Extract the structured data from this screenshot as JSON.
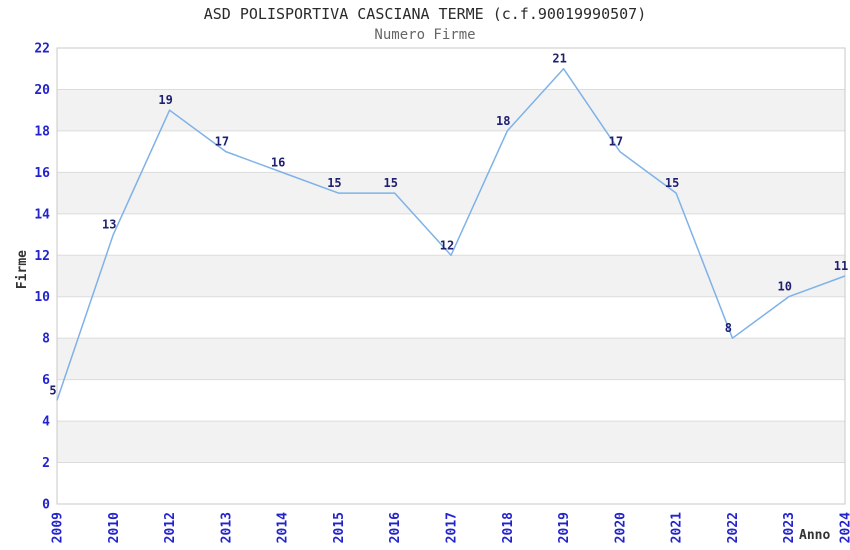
{
  "chart_data": {
    "type": "line",
    "title": "ASD POLISPORTIVA CASCIANA TERME (c.f.90019990507)",
    "subtitle": "Numero Firme",
    "xlabel": "Anno",
    "ylabel": "Firme",
    "categories": [
      "2009",
      "2010",
      "2012",
      "2013",
      "2014",
      "2015",
      "2016",
      "2017",
      "2018",
      "2019",
      "2020",
      "2021",
      "2022",
      "2023",
      "2024"
    ],
    "values": [
      5,
      13,
      19,
      17,
      16,
      15,
      15,
      12,
      18,
      21,
      17,
      15,
      8,
      10,
      11
    ],
    "ylim": [
      0,
      22
    ],
    "ytick_step": 2,
    "grid": "horizontal-bands-alternating",
    "legend": "none",
    "markers": "none",
    "point_labels_shown": true,
    "colors": {
      "line": "#7EB2E8",
      "tick_labels": "#2323CD",
      "point_labels": "#202070",
      "band": "#F2F2F2",
      "gridline": "#DCDCDC",
      "border": "#C9C9C9",
      "title": "#2A2A2A",
      "subtitle": "#666666",
      "axis_label": "#333333"
    }
  }
}
